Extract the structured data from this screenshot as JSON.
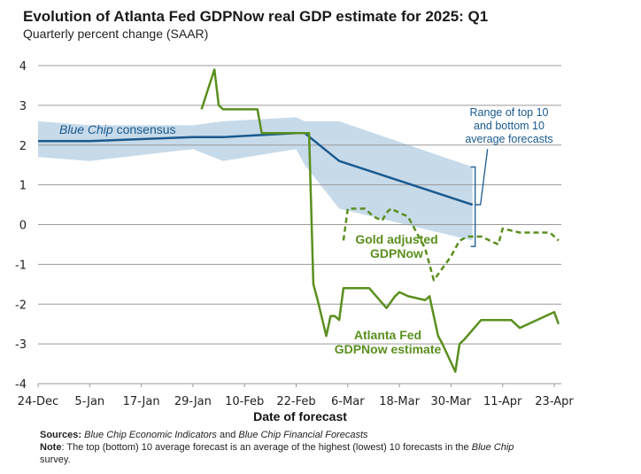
{
  "title": "Evolution of Atlanta Fed GDPNow real GDP estimate for 2025: Q1",
  "subtitle": "Quarterly percent change (SAAR)",
  "footer": {
    "sources_label": "Sources:",
    "sources_italic1": "Blue Chip Economic Indicators",
    "sources_and": " and ",
    "sources_italic2": "Blue Chip Financial Forecasts",
    "note_label": "Note",
    "note_text": ": The top (bottom) 10 average forecast is an average of the highest (lowest) 10 forecasts in the ",
    "note_italic": "Blue Chip",
    "note_end": " survey."
  },
  "chart_data": {
    "type": "line",
    "title": "Evolution of Atlanta Fed GDPNow real GDP estimate for 2025: Q1",
    "subtitle": "Quarterly percent change (SAAR)",
    "xlabel": "Date of forecast",
    "ylabel": "",
    "ylim": [
      -4,
      4
    ],
    "yticks": [
      4,
      3,
      2,
      1,
      0,
      -1,
      -2,
      -3,
      -4
    ],
    "x_unit": "days since 24-Dec-2024",
    "xlim": [
      0,
      121
    ],
    "xticks": [
      {
        "day": 0,
        "label": "24-Dec"
      },
      {
        "day": 12,
        "label": "5-Jan"
      },
      {
        "day": 24,
        "label": "17-Jan"
      },
      {
        "day": 36,
        "label": "29-Jan"
      },
      {
        "day": 48,
        "label": "10-Feb"
      },
      {
        "day": 60,
        "label": "22-Feb"
      },
      {
        "day": 72,
        "label": "6-Mar"
      },
      {
        "day": 84,
        "label": "18-Mar"
      },
      {
        "day": 96,
        "label": "30-Mar"
      },
      {
        "day": 108,
        "label": "11-Apr"
      },
      {
        "day": 120,
        "label": "23-Apr"
      }
    ],
    "grid": true,
    "series": [
      {
        "name": "Blue Chip consensus",
        "color": "#1a5a8e",
        "style": "solid",
        "x": [
          0,
          12,
          36,
          43,
          60,
          62,
          70,
          101
        ],
        "y": [
          2.1,
          2.1,
          2.2,
          2.2,
          2.3,
          2.3,
          1.6,
          0.5
        ]
      },
      {
        "name": "Range of top 10 and bottom 10 average forecasts",
        "type": "band",
        "color": "#c3d8e9",
        "x": [
          0,
          12,
          36,
          43,
          60,
          62,
          70,
          101
        ],
        "upper": [
          2.6,
          2.5,
          2.5,
          2.6,
          2.7,
          2.6,
          2.6,
          1.45
        ],
        "lower": [
          1.7,
          1.6,
          1.9,
          1.6,
          1.9,
          1.5,
          0.4,
          -0.4
        ]
      },
      {
        "name": "Atlanta Fed GDPNow estimate",
        "color": "#5a8f1e",
        "style": "solid",
        "x": [
          38,
          41,
          42,
          43,
          51,
          52,
          63,
          64,
          65,
          67,
          68,
          69,
          70,
          71,
          72,
          76,
          77,
          81,
          83,
          84,
          86,
          90,
          91,
          93,
          94,
          97,
          98,
          99,
          103,
          106,
          110,
          112,
          120,
          121
        ],
        "y": [
          2.9,
          3.9,
          3.0,
          2.9,
          2.9,
          2.3,
          2.3,
          -1.5,
          -1.9,
          -2.8,
          -2.3,
          -2.3,
          -2.4,
          -1.6,
          -1.6,
          -1.6,
          -1.6,
          -2.1,
          -1.8,
          -1.7,
          -1.8,
          -1.9,
          -1.8,
          -2.8,
          -3.0,
          -3.7,
          -3.0,
          -2.9,
          -2.4,
          -2.4,
          -2.4,
          -2.6,
          -2.2,
          -2.5
        ]
      },
      {
        "name": "Gold adjusted GDPNow",
        "color": "#5a8f1e",
        "style": "dashed",
        "x": [
          71,
          72,
          76,
          78,
          80,
          81,
          82,
          84,
          86,
          88,
          90,
          92,
          96,
          98,
          100,
          103,
          105,
          107,
          108,
          112,
          114,
          119,
          121
        ],
        "y": [
          -0.4,
          0.4,
          0.4,
          0.2,
          0.1,
          0.3,
          0.4,
          0.3,
          0.2,
          -0.2,
          -0.6,
          -1.4,
          -0.8,
          -0.4,
          -0.3,
          -0.3,
          -0.4,
          -0.5,
          -0.1,
          -0.2,
          -0.2,
          -0.2,
          -0.4
        ]
      }
    ],
    "annotations": [
      {
        "text": "Blue Chip consensus",
        "italic_part": "Blue Chip",
        "color": "#1a5a8e"
      },
      {
        "text": "Range of top 10 and bottom 10 average forecasts",
        "lines": [
          "Range of top 10",
          "and bottom 10",
          "average forecasts"
        ],
        "color": "#1a5a8e"
      },
      {
        "text": "Gold adjusted GDPNow",
        "lines": [
          "Gold adjusted",
          "GDPNow"
        ],
        "color": "#5a8f1e"
      },
      {
        "text": "Atlanta Fed GDPNow estimate",
        "lines": [
          "Atlanta Fed",
          "GDPNow estimate"
        ],
        "color": "#5a8f1e"
      }
    ]
  }
}
